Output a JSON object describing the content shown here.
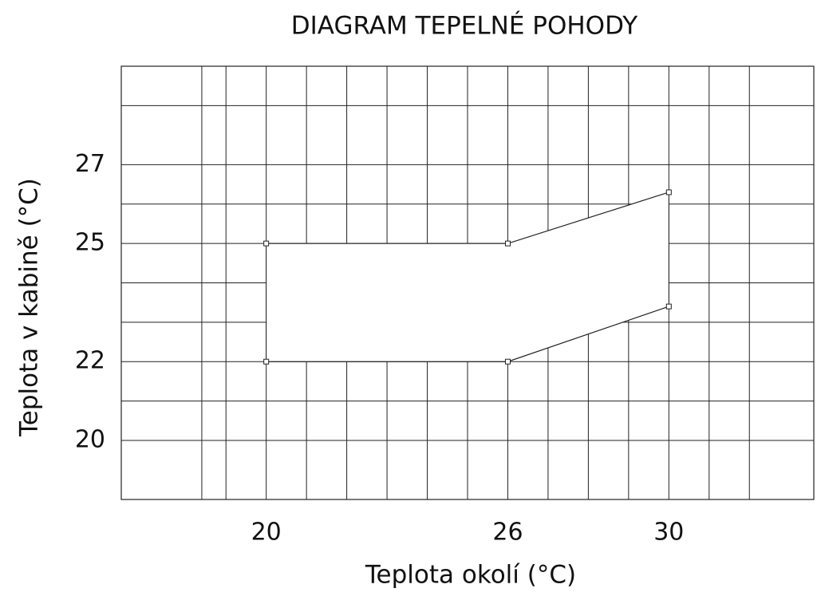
{
  "chart_data": {
    "type": "line",
    "title": "DIAGRAM TEPELNÉ POHODY",
    "x_label": "Teplota okolí (°C)",
    "y_label": "Teplota v kabině (°C)",
    "x": [
      20,
      26,
      30
    ],
    "series": [
      {
        "color": "#222222",
        "values": [
          25,
          25,
          26.3
        ]
      },
      {
        "color": "#222222",
        "values": [
          22,
          22,
          23.4
        ]
      }
    ],
    "xlim": [
      16.4,
      33.6
    ],
    "ylim": [
      18.5,
      29.5
    ],
    "xticks": [
      20,
      26,
      30
    ],
    "yticks": [
      20,
      22,
      25,
      27
    ],
    "xgrid": [
      18.4,
      19,
      20,
      21,
      22,
      23,
      24,
      25,
      26,
      27,
      28,
      29,
      30,
      31,
      32
    ],
    "ygrid": [
      20,
      21,
      22,
      23,
      24,
      25,
      26,
      27,
      28.5
    ],
    "grid": true
  }
}
